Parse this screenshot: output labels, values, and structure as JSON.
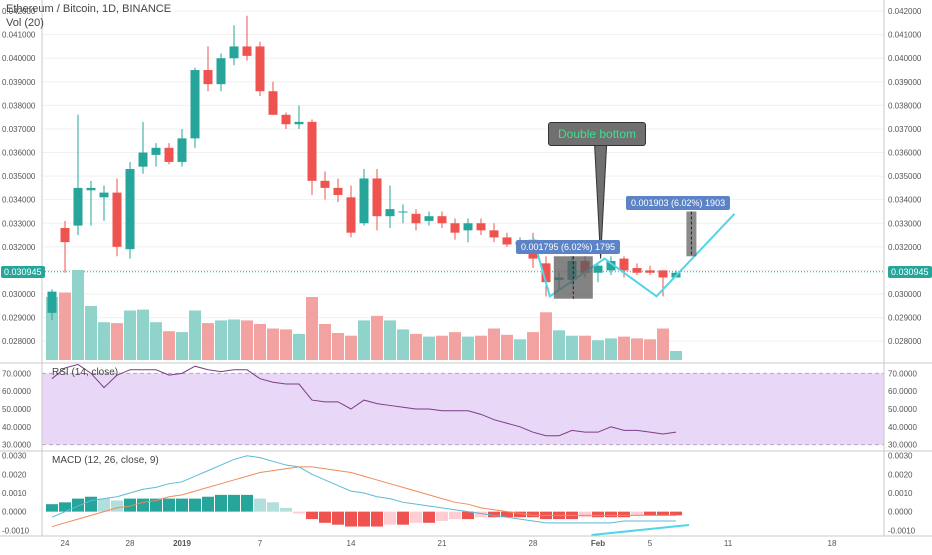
{
  "header": {
    "symbol_line": "Ethereum / Bitcoin, 1D, BINANCE",
    "volume_label": "Vol (20)"
  },
  "panes": {
    "rsi_label": "RSI (14, close)",
    "macd_label": "MACD (12, 26, close, 9)"
  },
  "last_price_label": "0.030945",
  "annotations": {
    "pattern_callout": "Double bottom",
    "measure_left": "0.001795 (6.02%) 1795",
    "measure_right": "0.001903 (6.02%) 1903"
  },
  "colors": {
    "up": "#26a69a",
    "down": "#ef5350",
    "vol_up": "#8fd3cb",
    "vol_down": "#f2a3a1",
    "rsi_band": "#e9d7f7",
    "rsi_line": "#7a3f86",
    "macd_line": "#5fb9d6",
    "signal_line": "#f08a5d",
    "pattern": "#4fd6e8",
    "grid": "#f0f0f0"
  },
  "price_axis": {
    "ticks": [
      "0.042000",
      "0.041000",
      "0.040000",
      "0.039000",
      "0.038000",
      "0.037000",
      "0.036000",
      "0.035000",
      "0.034000",
      "0.033000",
      "0.032000",
      "0.031000",
      "0.030000",
      "0.029000",
      "0.028000"
    ]
  },
  "rsi_axis": {
    "ticks": [
      "70.0000",
      "60.0000",
      "50.0000",
      "40.0000",
      "30.0000"
    ]
  },
  "macd_axis": {
    "ticks": [
      "0.0030",
      "0.0020",
      "0.0010",
      "0.0000",
      "-0.0010"
    ]
  },
  "time_axis": {
    "labels": [
      "24",
      "28",
      "2019",
      "7",
      "14",
      "21",
      "28",
      "Feb",
      "5",
      "11",
      "18"
    ]
  },
  "chart_data": {
    "type": "candlestick",
    "title": "Ethereum / Bitcoin, 1D, BINANCE",
    "price_range": [
      0.0272,
      0.0423
    ],
    "candles": [
      {
        "o": 0.0292,
        "h": 0.0302,
        "l": 0.0289,
        "c": 0.0301,
        "v": 0.7
      },
      {
        "o": 0.0328,
        "h": 0.0331,
        "l": 0.0309,
        "c": 0.0322,
        "v": 0.75
      },
      {
        "o": 0.0329,
        "h": 0.0376,
        "l": 0.0325,
        "c": 0.0345,
        "v": 1.0
      },
      {
        "o": 0.0344,
        "h": 0.0348,
        "l": 0.0329,
        "c": 0.0345,
        "v": 0.6
      },
      {
        "o": 0.0341,
        "h": 0.0346,
        "l": 0.0331,
        "c": 0.0343,
        "v": 0.42
      },
      {
        "o": 0.0343,
        "h": 0.0349,
        "l": 0.0316,
        "c": 0.032,
        "v": 0.41
      },
      {
        "o": 0.0319,
        "h": 0.0356,
        "l": 0.0315,
        "c": 0.0353,
        "v": 0.55
      },
      {
        "o": 0.0354,
        "h": 0.0373,
        "l": 0.0351,
        "c": 0.036,
        "v": 0.56
      },
      {
        "o": 0.0359,
        "h": 0.0364,
        "l": 0.0354,
        "c": 0.0362,
        "v": 0.42
      },
      {
        "o": 0.0362,
        "h": 0.0364,
        "l": 0.0355,
        "c": 0.0356,
        "v": 0.32
      },
      {
        "o": 0.0356,
        "h": 0.037,
        "l": 0.0354,
        "c": 0.0366,
        "v": 0.31
      },
      {
        "o": 0.0366,
        "h": 0.0396,
        "l": 0.0362,
        "c": 0.0395,
        "v": 0.55
      },
      {
        "o": 0.0395,
        "h": 0.0405,
        "l": 0.0386,
        "c": 0.0389,
        "v": 0.41
      },
      {
        "o": 0.0389,
        "h": 0.0402,
        "l": 0.0386,
        "c": 0.04,
        "v": 0.44
      },
      {
        "o": 0.04,
        "h": 0.0414,
        "l": 0.0397,
        "c": 0.0405,
        "v": 0.45
      },
      {
        "o": 0.0405,
        "h": 0.0418,
        "l": 0.0399,
        "c": 0.0401,
        "v": 0.44
      },
      {
        "o": 0.0405,
        "h": 0.0407,
        "l": 0.0384,
        "c": 0.0386,
        "v": 0.4
      },
      {
        "o": 0.0386,
        "h": 0.039,
        "l": 0.0376,
        "c": 0.0376,
        "v": 0.35
      },
      {
        "o": 0.0376,
        "h": 0.0377,
        "l": 0.037,
        "c": 0.0372,
        "v": 0.34
      },
      {
        "o": 0.0372,
        "h": 0.038,
        "l": 0.037,
        "c": 0.0373,
        "v": 0.29
      },
      {
        "o": 0.0373,
        "h": 0.0374,
        "l": 0.0342,
        "c": 0.0348,
        "v": 0.7
      },
      {
        "o": 0.0348,
        "h": 0.0352,
        "l": 0.034,
        "c": 0.0345,
        "v": 0.4
      },
      {
        "o": 0.0345,
        "h": 0.0349,
        "l": 0.0339,
        "c": 0.0342,
        "v": 0.3
      },
      {
        "o": 0.0341,
        "h": 0.0346,
        "l": 0.0324,
        "c": 0.0326,
        "v": 0.27
      },
      {
        "o": 0.033,
        "h": 0.0353,
        "l": 0.0329,
        "c": 0.0349,
        "v": 0.44
      },
      {
        "o": 0.0349,
        "h": 0.0353,
        "l": 0.0327,
        "c": 0.0333,
        "v": 0.49
      },
      {
        "o": 0.0333,
        "h": 0.0346,
        "l": 0.0328,
        "c": 0.0336,
        "v": 0.44
      },
      {
        "o": 0.0335,
        "h": 0.0338,
        "l": 0.033,
        "c": 0.0335,
        "v": 0.34
      },
      {
        "o": 0.0334,
        "h": 0.0336,
        "l": 0.0327,
        "c": 0.033,
        "v": 0.29
      },
      {
        "o": 0.0331,
        "h": 0.0335,
        "l": 0.0329,
        "c": 0.0333,
        "v": 0.26
      },
      {
        "o": 0.0333,
        "h": 0.0335,
        "l": 0.0328,
        "c": 0.033,
        "v": 0.27
      },
      {
        "o": 0.033,
        "h": 0.0332,
        "l": 0.0323,
        "c": 0.0326,
        "v": 0.31
      },
      {
        "o": 0.0327,
        "h": 0.0332,
        "l": 0.0322,
        "c": 0.033,
        "v": 0.26
      },
      {
        "o": 0.033,
        "h": 0.0332,
        "l": 0.0325,
        "c": 0.0327,
        "v": 0.27
      },
      {
        "o": 0.0327,
        "h": 0.033,
        "l": 0.0322,
        "c": 0.0324,
        "v": 0.35
      },
      {
        "o": 0.0324,
        "h": 0.0326,
        "l": 0.032,
        "c": 0.0321,
        "v": 0.28
      },
      {
        "o": 0.0321,
        "h": 0.0324,
        "l": 0.0318,
        "c": 0.0322,
        "v": 0.23
      },
      {
        "o": 0.0323,
        "h": 0.0326,
        "l": 0.0311,
        "c": 0.0315,
        "v": 0.31
      },
      {
        "o": 0.0313,
        "h": 0.0316,
        "l": 0.0299,
        "c": 0.0305,
        "v": 0.53
      },
      {
        "o": 0.0306,
        "h": 0.0309,
        "l": 0.0302,
        "c": 0.0307,
        "v": 0.33
      },
      {
        "o": 0.0306,
        "h": 0.0316,
        "l": 0.0304,
        "c": 0.0314,
        "v": 0.27
      },
      {
        "o": 0.0314,
        "h": 0.0316,
        "l": 0.0307,
        "c": 0.0309,
        "v": 0.27
      },
      {
        "o": 0.0309,
        "h": 0.0313,
        "l": 0.0305,
        "c": 0.0312,
        "v": 0.22
      },
      {
        "o": 0.031,
        "h": 0.0316,
        "l": 0.0308,
        "c": 0.0314,
        "v": 0.24
      },
      {
        "o": 0.0315,
        "h": 0.0316,
        "l": 0.0307,
        "c": 0.031,
        "v": 0.26
      },
      {
        "o": 0.0311,
        "h": 0.0313,
        "l": 0.0308,
        "c": 0.0309,
        "v": 0.24
      },
      {
        "o": 0.031,
        "h": 0.0312,
        "l": 0.0308,
        "c": 0.0309,
        "v": 0.23
      },
      {
        "o": 0.031,
        "h": 0.031,
        "l": 0.0299,
        "c": 0.0307,
        "v": 0.35
      },
      {
        "o": 0.0307,
        "h": 0.031,
        "l": 0.0307,
        "c": 0.0309,
        "v": 0.1
      }
    ],
    "rsi": [
      67,
      73,
      75,
      70,
      62,
      69,
      72,
      72,
      72,
      69,
      70,
      74,
      72,
      71,
      72,
      72,
      67,
      65,
      64,
      64,
      55,
      54,
      54,
      50,
      55,
      53,
      52,
      51,
      50,
      50,
      49,
      49,
      49,
      47,
      44,
      42,
      40,
      37,
      35,
      35,
      38,
      37,
      37,
      40,
      38,
      38,
      37,
      36,
      37
    ],
    "rsi_range": [
      27,
      73
    ],
    "macd_range": [
      -0.0012,
      0.0032
    ],
    "macd": [
      -0.0003,
      0.0,
      0.0003,
      0.0006,
      0.0007,
      0.0008,
      0.001,
      0.0012,
      0.0013,
      0.0015,
      0.0016,
      0.0019,
      0.0022,
      0.0025,
      0.0028,
      0.003,
      0.0029,
      0.0027,
      0.0025,
      0.0024,
      0.002,
      0.0017,
      0.0014,
      0.0011,
      0.001,
      0.0008,
      0.0007,
      0.0005,
      0.0004,
      0.0003,
      0.0002,
      0.0001,
      0.0,
      -0.0001,
      -0.0002,
      -0.0003,
      -0.0004,
      -0.0005,
      -0.0006,
      -0.0006,
      -0.0006,
      -0.0006,
      -0.0006,
      -0.0006,
      -0.0005,
      -0.0005,
      -0.0005,
      -0.0005,
      -0.0005
    ],
    "signal": [
      -0.0008,
      -0.0006,
      -0.0004,
      -0.0002,
      0.0,
      0.0002,
      0.0003,
      0.0005,
      0.0006,
      0.0008,
      0.0009,
      0.0011,
      0.0013,
      0.0015,
      0.0017,
      0.0019,
      0.0021,
      0.0022,
      0.0023,
      0.0024,
      0.0024,
      0.0023,
      0.0022,
      0.0021,
      0.0019,
      0.0017,
      0.0015,
      0.0013,
      0.0011,
      0.0009,
      0.0007,
      0.0005,
      0.0004,
      0.0002,
      0.0001,
      0.0,
      -0.0001,
      -0.0002,
      -0.0002,
      -0.0002,
      -0.0002,
      -0.0002,
      -0.0002,
      -0.0002,
      -0.0002,
      -0.0002,
      -0.0002,
      -0.0002,
      -0.0002
    ],
    "histogram": [
      0.0004,
      0.0005,
      0.0007,
      0.0008,
      0.0007,
      0.0006,
      0.0007,
      0.0007,
      0.0007,
      0.0007,
      0.0007,
      0.0007,
      0.0008,
      0.0009,
      0.0009,
      0.0009,
      0.0007,
      0.0005,
      0.0002,
      -0.0001,
      -0.0004,
      -0.0006,
      -0.0007,
      -0.0008,
      -0.0008,
      -0.0008,
      -0.0007,
      -0.0007,
      -0.0006,
      -0.0006,
      -0.0005,
      -0.0004,
      -0.0004,
      -0.0003,
      -0.0003,
      -0.0003,
      -0.0003,
      -0.0003,
      -0.0004,
      -0.0004,
      -0.0004,
      -0.0003,
      -0.0003,
      -0.0003,
      -0.0003,
      -0.0002,
      -0.0002,
      -0.0002,
      -0.0002
    ]
  }
}
